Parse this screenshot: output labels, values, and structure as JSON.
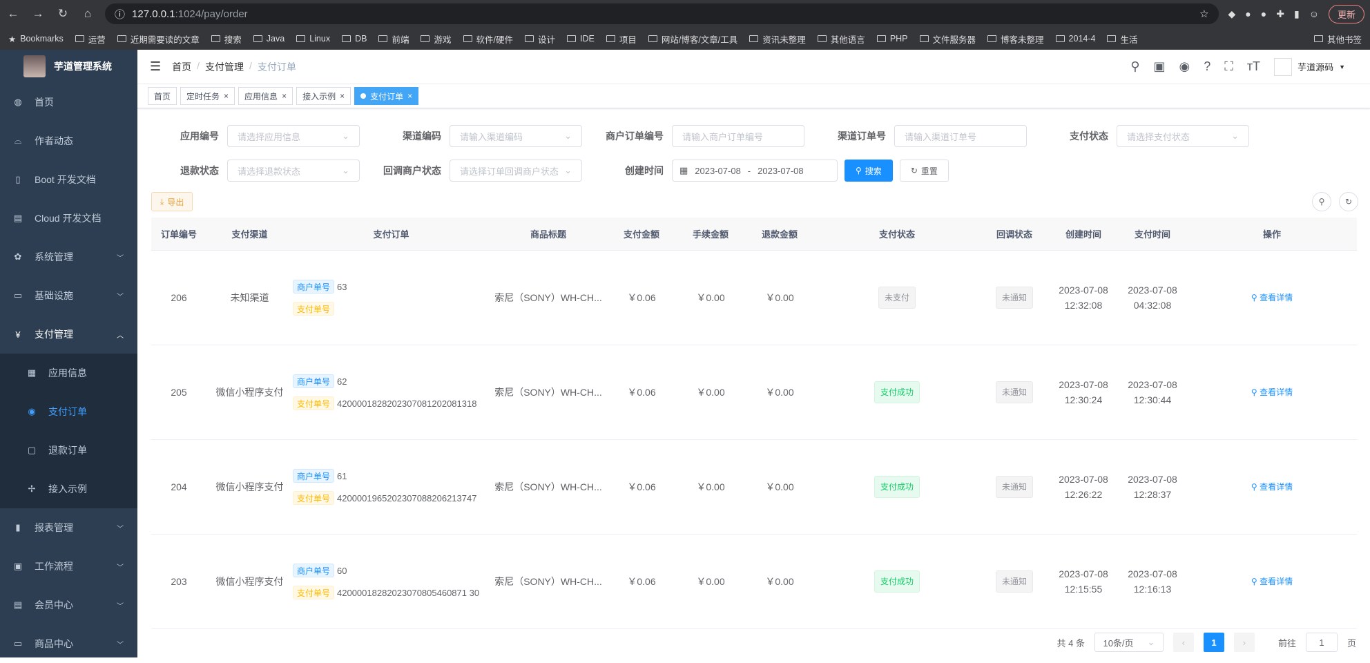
{
  "browser": {
    "url_host": "127.0.0.1",
    "url_path": ":1024/pay/order",
    "update_label": "更新",
    "bookmarks": [
      "Bookmarks",
      "运营",
      "近期需要读的文章",
      "搜索",
      "Java",
      "Linux",
      "DB",
      "前端",
      "游戏",
      "软件/硬件",
      "设计",
      "IDE",
      "项目",
      "网站/博客/文章/工具",
      "资讯未整理",
      "其他语言",
      "PHP",
      "文件服务器",
      "博客未整理",
      "2014-4",
      "生活"
    ],
    "other_bookmarks": "其他书签"
  },
  "sidebar": {
    "title": "芋道管理系统",
    "items": [
      {
        "label": "首页",
        "icon": "dashboard-icon"
      },
      {
        "label": "作者动态",
        "icon": "people-icon"
      },
      {
        "label": "Boot 开发文档",
        "icon": "book-icon"
      },
      {
        "label": "Cloud 开发文档",
        "icon": "doc-icon"
      },
      {
        "label": "系统管理",
        "icon": "gear-icon"
      },
      {
        "label": "基础设施",
        "icon": "monitor-icon"
      },
      {
        "label": "支付管理",
        "icon": "yen-icon"
      }
    ],
    "sub_items": [
      {
        "label": "应用信息"
      },
      {
        "label": "支付订单"
      },
      {
        "label": "退款订单"
      },
      {
        "label": "接入示例"
      }
    ],
    "items_after": [
      {
        "label": "报表管理"
      },
      {
        "label": "工作流程"
      },
      {
        "label": "会员中心"
      },
      {
        "label": "商品中心"
      }
    ]
  },
  "header": {
    "breadcrumb": [
      "首页",
      "支付管理",
      "支付订单"
    ],
    "user": "芋道源码"
  },
  "tags": [
    "首页",
    "定时任务",
    "应用信息",
    "接入示例",
    "支付订单"
  ],
  "filters": {
    "app": {
      "label": "应用编号",
      "placeholder": "请选择应用信息"
    },
    "channel": {
      "label": "渠道编码",
      "placeholder": "请输入渠道编码"
    },
    "merchant_order": {
      "label": "商户订单编号",
      "placeholder": "请输入商户订单编号"
    },
    "channel_order": {
      "label": "渠道订单号",
      "placeholder": "请输入渠道订单号"
    },
    "pay_status": {
      "label": "支付状态",
      "placeholder": "请选择支付状态"
    },
    "refund_status": {
      "label": "退款状态",
      "placeholder": "请选择退款状态"
    },
    "notify_status": {
      "label": "回调商户状态",
      "placeholder": "请选择订单回调商户状态"
    },
    "create_time": {
      "label": "创建时间",
      "start": "2023-07-08",
      "sep": "-",
      "end": "2023-07-08"
    },
    "search": "搜索",
    "reset": "重置"
  },
  "export_label": "导出",
  "table": {
    "columns": [
      "订单编号",
      "支付渠道",
      "支付订单",
      "商品标题",
      "支付金额",
      "手续金额",
      "退款金额",
      "支付状态",
      "回调状态",
      "创建时间",
      "支付时间",
      "操作"
    ],
    "merchant_tag": "商户单号",
    "pay_tag": "支付单号",
    "action": "查看详情",
    "rows": [
      {
        "id": "206",
        "channel": "未知渠道",
        "merchant_no": "63",
        "pay_no": "",
        "title": "索尼（SONY）WH-CH...",
        "amount": "￥0.06",
        "fee": "￥0.00",
        "refund": "￥0.00",
        "status": "未支付",
        "status_type": "grey",
        "notify": "未通知",
        "created": "2023-07-08 12:32:08",
        "paid": "2023-07-08 04:32:08"
      },
      {
        "id": "205",
        "channel": "微信小程序支付",
        "merchant_no": "62",
        "pay_no": "4200001828202307081202081318",
        "title": "索尼（SONY）WH-CH...",
        "amount": "￥0.06",
        "fee": "￥0.00",
        "refund": "￥0.00",
        "status": "支付成功",
        "status_type": "green",
        "notify": "未通知",
        "created": "2023-07-08 12:30:24",
        "paid": "2023-07-08 12:30:44"
      },
      {
        "id": "204",
        "channel": "微信小程序支付",
        "merchant_no": "61",
        "pay_no": "4200001965202307088206213747",
        "title": "索尼（SONY）WH-CH...",
        "amount": "￥0.06",
        "fee": "￥0.00",
        "refund": "￥0.00",
        "status": "支付成功",
        "status_type": "green",
        "notify": "未通知",
        "created": "2023-07-08 12:26:22",
        "paid": "2023-07-08 12:28:37"
      },
      {
        "id": "203",
        "channel": "微信小程序支付",
        "merchant_no": "60",
        "pay_no": "42000018282023070805460871 30",
        "title": "索尼（SONY）WH-CH...",
        "amount": "￥0.06",
        "fee": "￥0.00",
        "refund": "￥0.00",
        "status": "支付成功",
        "status_type": "green",
        "notify": "未通知",
        "created": "2023-07-08 12:15:55",
        "paid": "2023-07-08 12:16:13"
      }
    ]
  },
  "pagination": {
    "total": "共 4 条",
    "page_size": "10条/页",
    "current": "1",
    "goto": "前往",
    "goto_value": "1",
    "page_unit": "页"
  }
}
